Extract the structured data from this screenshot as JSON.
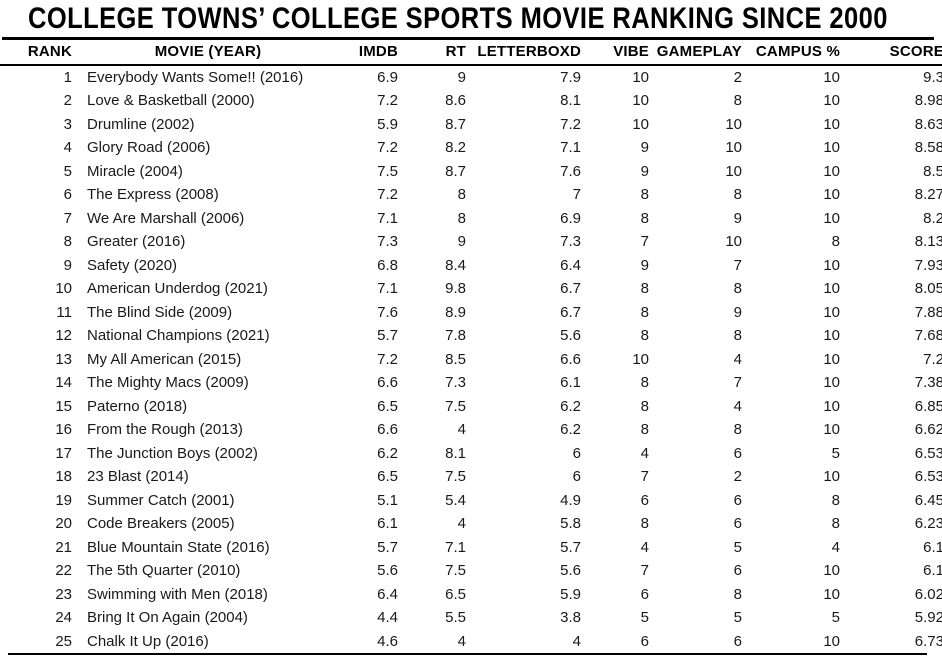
{
  "title": "COLLEGE TOWNS’ COLLEGE SPORTS MOVIE RANKING SINCE 2000",
  "colors": {
    "background": "#ffffff",
    "heading_text": "#000000",
    "body_text": "#191919",
    "rule": "#000000"
  },
  "chart_data": {
    "type": "table",
    "title": "COLLEGE TOWNS’ COLLEGE SPORTS MOVIE RANKING SINCE 2000",
    "columns": [
      "RANK",
      "MOVIE (YEAR)",
      "IMDB",
      "RT",
      "LETTERBOXD",
      "VIBE",
      "GAMEPLAY",
      "CAMPUS %",
      "SCORE"
    ],
    "rows": [
      [
        1,
        "Everybody Wants Some!! (2016)",
        6.9,
        9,
        7.9,
        10,
        2,
        10,
        9.3
      ],
      [
        2,
        "Love & Basketball (2000)",
        7.2,
        8.6,
        8.1,
        10,
        8,
        10,
        8.98
      ],
      [
        3,
        "Drumline (2002)",
        5.9,
        8.7,
        7.2,
        10,
        10,
        10,
        8.63
      ],
      [
        4,
        "Glory Road (2006)",
        7.2,
        8.2,
        7.1,
        9,
        10,
        10,
        8.58
      ],
      [
        5,
        "Miracle (2004)",
        7.5,
        8.7,
        7.6,
        9,
        10,
        10,
        8.5
      ],
      [
        6,
        "The Express (2008)",
        7.2,
        8,
        7,
        8,
        8,
        10,
        8.27
      ],
      [
        7,
        "We Are Marshall (2006)",
        7.1,
        8,
        6.9,
        8,
        9,
        10,
        8.2
      ],
      [
        8,
        "Greater (2016)",
        7.3,
        9,
        7.3,
        7,
        10,
        8,
        8.13
      ],
      [
        9,
        "Safety (2020)",
        6.8,
        8.4,
        6.4,
        9,
        7,
        10,
        7.93
      ],
      [
        10,
        "American Underdog (2021)",
        7.1,
        9.8,
        6.7,
        8,
        8,
        10,
        8.05
      ],
      [
        11,
        "The Blind Side (2009)",
        7.6,
        8.9,
        6.7,
        8,
        9,
        10,
        7.88
      ],
      [
        12,
        "National Champions (2021)",
        5.7,
        7.8,
        5.6,
        8,
        8,
        10,
        7.68
      ],
      [
        13,
        "My All American (2015)",
        7.2,
        8.5,
        6.6,
        10,
        4,
        10,
        7.2
      ],
      [
        14,
        "The Mighty Macs (2009)",
        6.6,
        7.3,
        6.1,
        8,
        7,
        10,
        7.38
      ],
      [
        15,
        "Paterno (2018)",
        6.5,
        7.5,
        6.2,
        8,
        4,
        10,
        6.85
      ],
      [
        16,
        "From the Rough (2013)",
        6.6,
        4,
        6.2,
        8,
        8,
        10,
        6.62
      ],
      [
        17,
        "The Junction Boys (2002)",
        6.2,
        8.1,
        6,
        4,
        6,
        5,
        6.53
      ],
      [
        18,
        "23 Blast (2014)",
        6.5,
        7.5,
        6,
        7,
        2,
        10,
        6.53
      ],
      [
        19,
        "Summer Catch (2001)",
        5.1,
        5.4,
        4.9,
        6,
        6,
        8,
        6.45
      ],
      [
        20,
        "Code Breakers (2005)",
        6.1,
        4,
        5.8,
        8,
        6,
        8,
        6.23
      ],
      [
        21,
        "Blue Mountain State (2016)",
        5.7,
        7.1,
        5.7,
        4,
        5,
        4,
        6.1
      ],
      [
        22,
        "The 5th Quarter (2010)",
        5.6,
        7.5,
        5.6,
        7,
        6,
        10,
        6.1
      ],
      [
        23,
        "Swimming with Men (2018)",
        6.4,
        6.5,
        5.9,
        6,
        8,
        10,
        6.02
      ],
      [
        24,
        "Bring It On Again (2004)",
        4.4,
        5.5,
        3.8,
        5,
        5,
        5,
        5.92
      ],
      [
        25,
        "Chalk It Up (2016)",
        4.6,
        4,
        4,
        6,
        6,
        10,
        6.73
      ]
    ]
  }
}
